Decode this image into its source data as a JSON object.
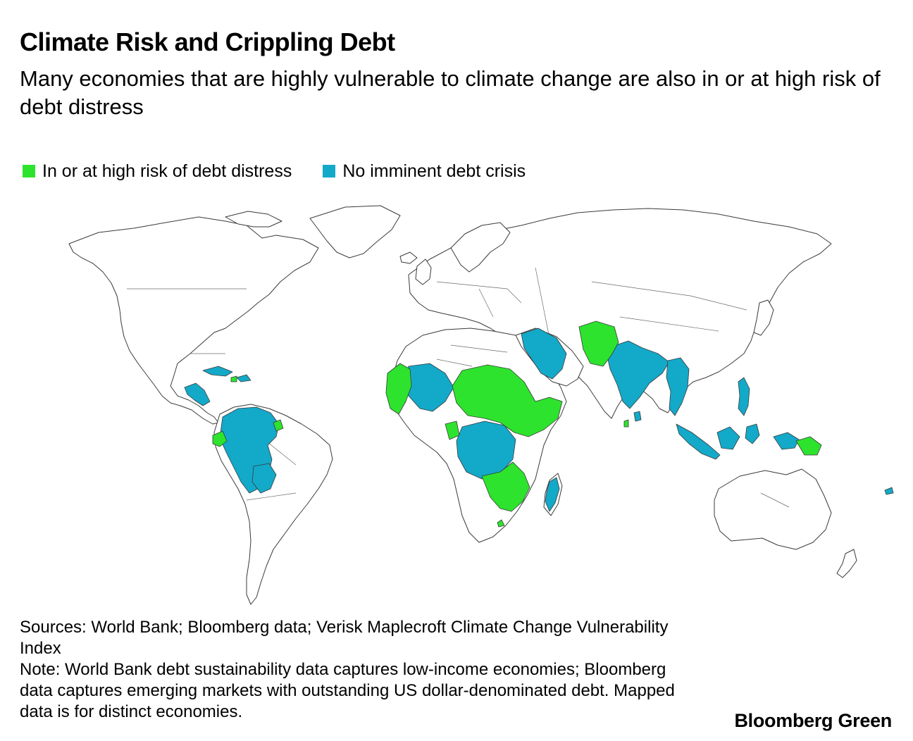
{
  "title": "Climate Risk and Crippling Debt",
  "subtitle": "Many economies that are highly vulnerable to climate change are also in or at high risk of debt distress",
  "legend": {
    "items": [
      {
        "label": "In or at high risk of debt distress",
        "color": "#2de32d"
      },
      {
        "label": "No imminent debt crisis",
        "color": "#13a9c9"
      }
    ]
  },
  "notes": {
    "sources": "Sources: World Bank; Bloomberg data; Verisk Maplecroft Climate Change Vulnerability Index",
    "note": "Note: World Bank debt sustainability data captures low-income economies; Bloomberg data captures emerging markets with outstanding US dollar-denominated debt. Mapped data is for distinct economies."
  },
  "brand": "Bloomberg Green",
  "colors": {
    "distress": "#2de32d",
    "stable": "#13a9c9",
    "land": "#ffffff",
    "outline": "#3a3a3a"
  }
}
